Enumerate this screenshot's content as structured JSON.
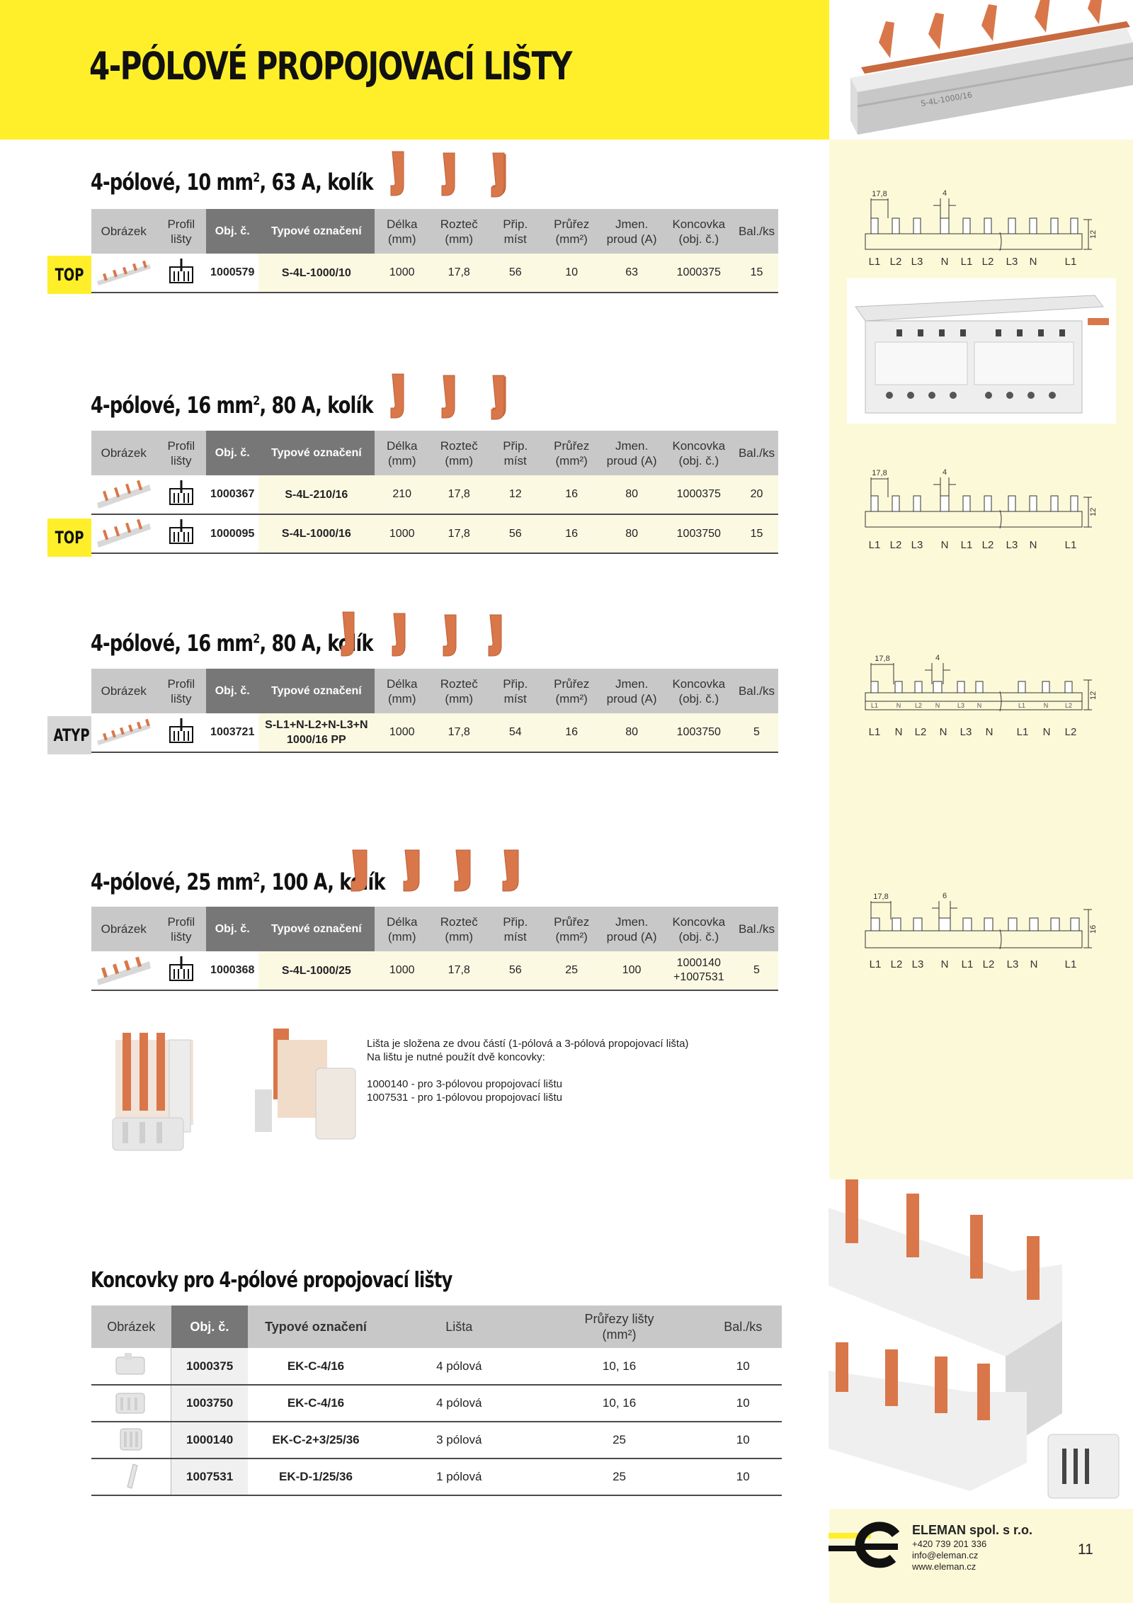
{
  "header": {
    "title": "4-PÓLOVÉ PROPOJOVACÍ LIŠTY"
  },
  "columns": {
    "picture": "Obrázek",
    "profile": [
      "Profil",
      "lišty"
    ],
    "code": "Obj. č.",
    "type": "Typové označení",
    "length": [
      "Délka",
      "(mm)"
    ],
    "pitch": [
      "Rozteč",
      "(mm)"
    ],
    "places": [
      "Přip.",
      "míst"
    ],
    "section": [
      "Průřez",
      "(mm²)"
    ],
    "current": [
      "Jmen.",
      "proud (A)"
    ],
    "endcap": [
      "Koncovka",
      "(obj. č.)"
    ],
    "pack": "Bal./ks"
  },
  "sections": [
    {
      "title_pre": "4-pólové, 10 mm",
      "title_sup": "2",
      "title_post": ", 63 A, kolík",
      "rows": [
        {
          "tag": "TOP",
          "code": "1000579",
          "type": "S-4L-1000/10",
          "length": "1000",
          "pitch": "17,8",
          "places": "56",
          "section": "10",
          "current": "63",
          "endcap": "1000375",
          "pack": "15"
        }
      ],
      "diagram": {
        "dim1": "17,8",
        "dim2": "4",
        "height": "12",
        "labels": [
          "L1",
          "L2",
          "L3",
          "N",
          "L1",
          "L2",
          "L3",
          "N",
          "L1"
        ]
      }
    },
    {
      "title_pre": "4-pólové, 16 mm",
      "title_sup": "2",
      "title_post": ", 80 A, kolík",
      "rows": [
        {
          "tag": "",
          "code": "1000367",
          "type": "S-4L-210/16",
          "length": "210",
          "pitch": "17,8",
          "places": "12",
          "section": "16",
          "current": "80",
          "endcap": "1000375",
          "pack": "20"
        },
        {
          "tag": "TOP",
          "code": "1000095",
          "type": "S-4L-1000/16",
          "length": "1000",
          "pitch": "17,8",
          "places": "56",
          "section": "16",
          "current": "80",
          "endcap": "1003750",
          "pack": "15"
        }
      ],
      "diagram": {
        "dim1": "17,8",
        "dim2": "4",
        "height": "12",
        "labels": [
          "L1",
          "L2",
          "L3",
          "N",
          "L1",
          "L2",
          "L3",
          "N",
          "L1"
        ]
      }
    },
    {
      "title_pre": "4-pólové, 16 mm",
      "title_sup": "2",
      "title_post": ", 80 A, kolík",
      "rows": [
        {
          "tag": "ATYP",
          "code": "1003721",
          "type_line1": "S-L1+N-L2+N-L3+N",
          "type_line2": "1000/16 PP",
          "length": "1000",
          "pitch": "17,8",
          "places": "54",
          "section": "16",
          "current": "80",
          "endcap": "1003750",
          "pack": "5"
        }
      ],
      "diagram": {
        "dim1": "17,8",
        "dim2": "4",
        "height": "12",
        "small_labels": [
          "L1",
          "N",
          "L2",
          "N",
          "L3",
          "N",
          "L1",
          "N",
          "L2"
        ],
        "labels": [
          "L1",
          "N",
          "L2",
          "N",
          "L3",
          "N",
          "L1",
          "N",
          "L2"
        ]
      }
    },
    {
      "title_pre": "4-pólové, 25 mm",
      "title_sup": "2",
      "title_post": ", 100 A, kolík",
      "rows": [
        {
          "tag": "",
          "code": "1000368",
          "type": "S-4L-1000/25",
          "length": "1000",
          "pitch": "17,8",
          "places": "56",
          "section": "25",
          "current": "100",
          "endcap_line1": "1000140",
          "endcap_line2": "+1007531",
          "pack": "5"
        }
      ],
      "diagram": {
        "dim1": "17,8",
        "dim2": "6",
        "height": "16",
        "labels": [
          "L1",
          "L2",
          "L3",
          "N",
          "L1",
          "L2",
          "L3",
          "N",
          "L1"
        ]
      }
    }
  ],
  "note": {
    "line1": "Lišta je složena ze dvou částí (1-pólová a 3-pólová propojovací lišta)",
    "line2": "Na lištu je nutné použít dvě koncovky:",
    "line3": "1000140 - pro 3-pólovou propojovací lištu",
    "line4": "1007531 - pro 1-pólovou propojovací lištu"
  },
  "endcaps": {
    "title": "Koncovky pro 4-pólové propojovací lišty",
    "headers": {
      "picture": "Obrázek",
      "code": "Obj. č.",
      "type": "Typové označení",
      "bar": "Lišta",
      "sections": [
        "Průřezy lišty",
        "(mm²)"
      ],
      "pack": "Bal./ks"
    },
    "rows": [
      {
        "code": "1000375",
        "type": "EK-C-4/16",
        "bar": "4 pólová",
        "sections": "10, 16",
        "pack": "10"
      },
      {
        "code": "1003750",
        "type": "EK-C-4/16",
        "bar": "4 pólová",
        "sections": "10, 16",
        "pack": "10"
      },
      {
        "code": "1000140",
        "type": "EK-C-2+3/25/36",
        "bar": "3 pólová",
        "sections": "25",
        "pack": "10"
      },
      {
        "code": "1007531",
        "type": "EK-D-1/25/36",
        "bar": "1 pólová",
        "sections": "25",
        "pack": "10"
      }
    ]
  },
  "footer": {
    "company": "ELEMAN spol. s r.o.",
    "phone": "+420 739 201 336",
    "email": "info@eleman.cz",
    "web": "www.eleman.cz",
    "page": "11"
  },
  "colors": {
    "accent_yellow": "#ffef2a",
    "side_cream": "#fcf9d9",
    "header_dark": "#777777",
    "header_light": "#c8c8c8",
    "copper": "#d9774a"
  }
}
